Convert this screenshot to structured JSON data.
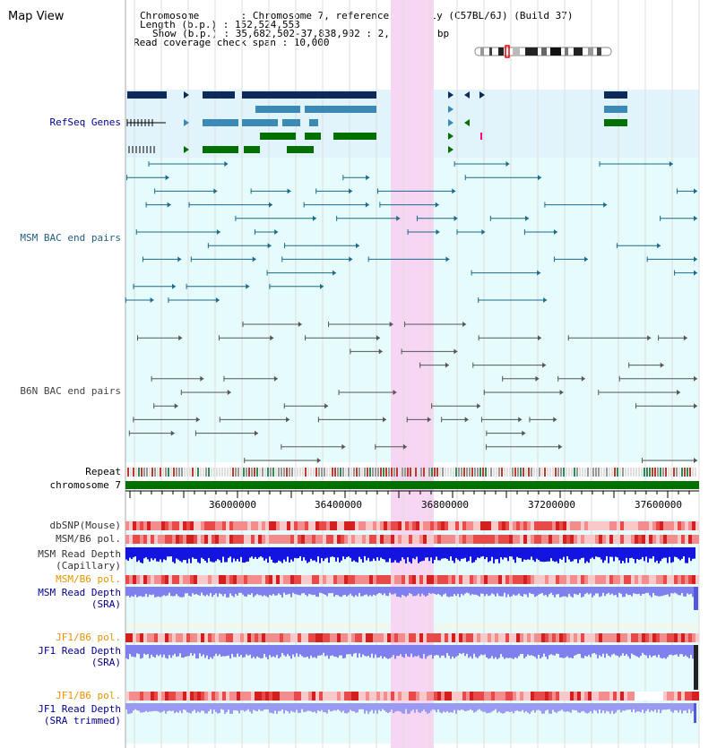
{
  "app": {
    "title": "Map View"
  },
  "info": {
    "chromosome": "Chromosome       : Chromosome 7, reference assembly (C57BL/6J) (Build 37)",
    "length": "Length (b.p.) : 152,524,553",
    "show": "Show (b.p.) : 35,682,502-37,838,902 : 2,156,401 bp",
    "read_span": "Read coverage check span : 10,000"
  },
  "tracks": {
    "refseq": "RefSeq Genes",
    "msm_bac": "MSM BAC end pairs",
    "b6n_bac": "B6N BAC end pairs",
    "repeat": "Repeat",
    "chromosome": "chromosome 7",
    "dbsnp": "dbSNP(Mouse)",
    "msm_pol": "MSM/B6 pol.",
    "msm_depth_cap_1": "MSM Read Depth",
    "msm_depth_cap_2": "(Capillary)",
    "msm_pol2": "MSM/B6 pol.",
    "msm_depth_sra_1": "MSM Read Depth",
    "msm_depth_sra_2": "(SRA)",
    "jf1_pol": "JF1/B6 pol.",
    "jf1_depth_1": "JF1 Read Depth",
    "jf1_depth_2": "(SRA)",
    "jf1_pol2": "JF1/B6 pol.",
    "jf1_trim_1": "JF1 Read Depth",
    "jf1_trim_2": "(SRA trimmed)"
  },
  "axis": {
    "ticks": [
      "36000000",
      "36400000",
      "36800000",
      "37200000",
      "37600000"
    ]
  },
  "colors": {
    "refseq_dark": "#0d2a5a",
    "refseq_mid": "#3a8ab5",
    "refseq_green": "#007000",
    "msm_bac": "#1a6a8a",
    "b6n_bac": "#555555",
    "highlight": "#f7d6f3",
    "panel_blue": "#e2f4fb",
    "panel_cyan": "#e6fcfc",
    "label_navy": "#00008b",
    "label_teal": "#1f5f7f",
    "label_orange": "#e69500"
  }
}
